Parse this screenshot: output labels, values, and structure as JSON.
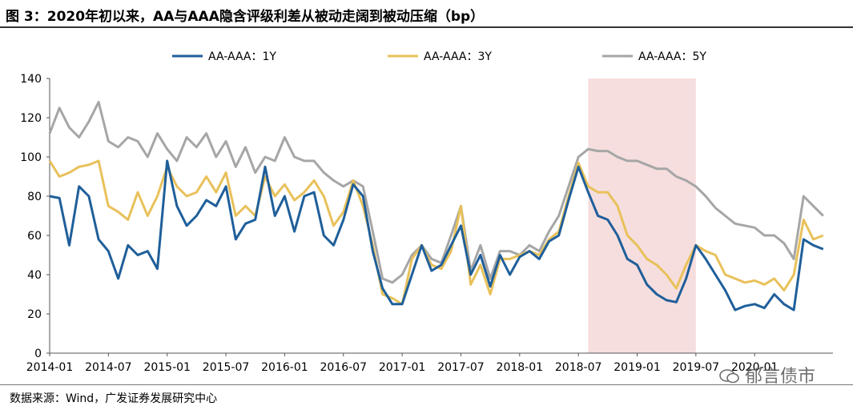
{
  "title": "图 3：2020年初以来，AA与AAA隐含评级利差从被动走阔到被动压缩（bp）",
  "source": "数据来源：Wind，广发证券发展研究中心",
  "watermark": "郁言债市",
  "colors": {
    "series_1y": "#1f5f9a",
    "series_3y": "#e8c15a",
    "series_5y": "#a6a6a6",
    "highlight": "#f6dede",
    "axis": "#555555"
  },
  "chart_data": {
    "type": "line",
    "title": "2020年初以来，AA与AAA隐含评级利差从被动走阔到被动压缩（bp）",
    "xlabel": "",
    "ylabel": "",
    "ylim": [
      0,
      140
    ],
    "yticks": [
      0,
      20,
      40,
      60,
      80,
      100,
      120,
      140
    ],
    "xlim": [
      0,
      80
    ],
    "xticks": [
      {
        "t": 0,
        "label": "2014-01"
      },
      {
        "t": 6,
        "label": "2014-07"
      },
      {
        "t": 12,
        "label": "2015-01"
      },
      {
        "t": 18,
        "label": "2015-07"
      },
      {
        "t": 24,
        "label": "2016-01"
      },
      {
        "t": 30,
        "label": "2016-07"
      },
      {
        "t": 36,
        "label": "2017-01"
      },
      {
        "t": 42,
        "label": "2017-07"
      },
      {
        "t": 48,
        "label": "2018-01"
      },
      {
        "t": 54,
        "label": "2018-07"
      },
      {
        "t": 60,
        "label": "2019-01"
      },
      {
        "t": 66,
        "label": "2019-07"
      },
      {
        "t": 72,
        "label": "2020-01"
      }
    ],
    "highlight_range": [
      55,
      66
    ],
    "legend": [
      "AA-AAA：1Y",
      "AA-AAA：3Y",
      "AA-AAA：5Y"
    ],
    "legend_position": "top",
    "series": [
      {
        "name": "AA-AAA：1Y",
        "x": [
          0,
          1,
          2,
          3,
          4,
          5,
          6,
          7,
          8,
          9,
          10,
          11,
          12,
          13,
          14,
          15,
          16,
          17,
          18,
          19,
          20,
          21,
          22,
          23,
          24,
          25,
          26,
          27,
          28,
          29,
          30,
          31,
          32,
          33,
          34,
          35,
          36,
          37,
          38,
          39,
          40,
          41,
          42,
          43,
          44,
          45,
          46,
          47,
          48,
          49,
          50,
          51,
          52,
          53,
          54,
          55,
          56,
          57,
          58,
          59,
          60,
          61,
          62,
          63,
          64,
          65,
          66,
          67,
          68,
          69,
          70,
          71,
          72,
          73,
          74,
          75,
          76,
          77,
          78,
          79
        ],
        "values": [
          80,
          79,
          55,
          85,
          80,
          58,
          52,
          38,
          55,
          50,
          52,
          43,
          98,
          75,
          65,
          70,
          78,
          75,
          85,
          58,
          66,
          68,
          95,
          70,
          80,
          62,
          80,
          82,
          60,
          55,
          68,
          86,
          80,
          52,
          33,
          25,
          25,
          40,
          55,
          42,
          45,
          55,
          65,
          40,
          50,
          34,
          50,
          40,
          49,
          52,
          48,
          57,
          60,
          78,
          95,
          82,
          70,
          68,
          60,
          48,
          45,
          35,
          30,
          27,
          26,
          38,
          55,
          48,
          40,
          32,
          22,
          24,
          25,
          23,
          30,
          25,
          22,
          58,
          55,
          53
        ]
      },
      {
        "name": "AA-AAA：3Y",
        "x": [
          0,
          1,
          2,
          3,
          4,
          5,
          6,
          7,
          8,
          9,
          10,
          11,
          12,
          13,
          14,
          15,
          16,
          17,
          18,
          19,
          20,
          21,
          22,
          23,
          24,
          25,
          26,
          27,
          28,
          29,
          30,
          31,
          32,
          33,
          34,
          35,
          36,
          37,
          38,
          39,
          40,
          41,
          42,
          43,
          44,
          45,
          46,
          47,
          48,
          49,
          50,
          51,
          52,
          53,
          54,
          55,
          56,
          57,
          58,
          59,
          60,
          61,
          62,
          63,
          64,
          65,
          66,
          67,
          68,
          69,
          70,
          71,
          72,
          73,
          74,
          75,
          76,
          77,
          78,
          79
        ],
        "values": [
          98,
          90,
          92,
          95,
          96,
          98,
          75,
          72,
          68,
          82,
          70,
          80,
          95,
          85,
          80,
          82,
          90,
          82,
          92,
          70,
          75,
          70,
          90,
          80,
          86,
          78,
          82,
          88,
          80,
          65,
          72,
          88,
          75,
          55,
          30,
          28,
          25,
          48,
          55,
          45,
          43,
          52,
          75,
          35,
          45,
          30,
          48,
          48,
          50,
          52,
          50,
          58,
          62,
          80,
          97,
          85,
          82,
          82,
          75,
          60,
          55,
          48,
          45,
          40,
          33,
          45,
          55,
          52,
          50,
          40,
          38,
          36,
          37,
          35,
          38,
          32,
          40,
          68,
          58,
          60
        ]
      },
      {
        "name": "AA-AAA：5Y",
        "x": [
          0,
          1,
          2,
          3,
          4,
          5,
          6,
          7,
          8,
          9,
          10,
          11,
          12,
          13,
          14,
          15,
          16,
          17,
          18,
          19,
          20,
          21,
          22,
          23,
          24,
          25,
          26,
          27,
          28,
          29,
          30,
          31,
          32,
          33,
          34,
          35,
          36,
          37,
          38,
          39,
          40,
          41,
          42,
          43,
          44,
          45,
          46,
          47,
          48,
          49,
          50,
          51,
          52,
          53,
          54,
          55,
          56,
          57,
          58,
          59,
          60,
          61,
          62,
          63,
          64,
          65,
          66,
          67,
          68,
          69,
          70,
          71,
          72,
          73,
          74,
          75,
          76,
          77,
          78,
          79
        ],
        "values": [
          112,
          125,
          115,
          110,
          118,
          128,
          108,
          105,
          110,
          108,
          100,
          112,
          104,
          98,
          110,
          105,
          112,
          100,
          108,
          95,
          105,
          92,
          100,
          98,
          110,
          100,
          98,
          98,
          92,
          88,
          85,
          88,
          85,
          62,
          38,
          36,
          40,
          50,
          55,
          48,
          46,
          60,
          75,
          42,
          55,
          38,
          52,
          52,
          50,
          55,
          52,
          62,
          70,
          85,
          100,
          104,
          103,
          103,
          100,
          98,
          98,
          96,
          94,
          94,
          90,
          88,
          85,
          80,
          74,
          70,
          66,
          65,
          64,
          60,
          60,
          56,
          48,
          80,
          75,
          70
        ]
      }
    ]
  }
}
